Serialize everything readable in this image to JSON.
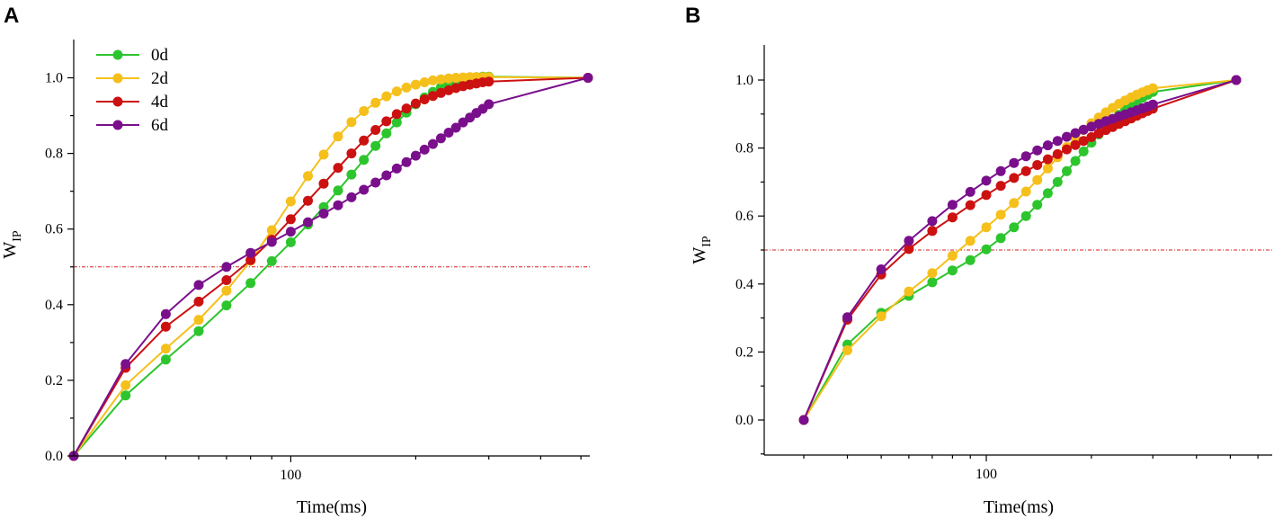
{
  "colors": {
    "0d": "#2dc52d",
    "2d": "#f5c01c",
    "4d": "#cc1111",
    "6d": "#7a0f8c",
    "ref": "#d62020"
  },
  "chart_data": [
    {
      "panel": "A",
      "type": "line",
      "xscale": "log",
      "xlabel": "Time(ms)",
      "ylabel": "W",
      "ylabel_sub": "IP",
      "ylim": [
        0,
        1.1
      ],
      "yticks": [
        0.0,
        0.2,
        0.4,
        0.6,
        0.8,
        1.0
      ],
      "ytick_labels": [
        "0.0",
        "0.2",
        "0.4",
        "0.6",
        "0.8",
        "1.0"
      ],
      "xticks": [
        100
      ],
      "xtick_labels": [
        "100"
      ],
      "reference_line": 0.5,
      "legend": [
        "0d",
        "2d",
        "4d",
        "6d"
      ],
      "legend_position": "top-left",
      "series": [
        {
          "name": "0d",
          "color_key": "0d",
          "x": [
            30,
            40,
            50,
            60,
            70,
            80,
            90,
            100,
            110,
            120,
            130,
            140,
            150,
            160,
            170,
            180,
            190,
            200,
            210,
            220,
            230,
            240,
            250,
            260,
            270,
            280,
            290,
            300,
            520
          ],
          "y": [
            0,
            0.16,
            0.255,
            0.33,
            0.398,
            0.457,
            0.515,
            0.565,
            0.612,
            0.658,
            0.702,
            0.744,
            0.783,
            0.82,
            0.853,
            0.882,
            0.908,
            0.93,
            0.948,
            0.963,
            0.975,
            0.984,
            0.991,
            0.997,
            1.0,
            1.002,
            1.003,
            1.003,
            1.0
          ]
        },
        {
          "name": "2d",
          "color_key": "2d",
          "x": [
            30,
            40,
            50,
            60,
            70,
            80,
            90,
            100,
            110,
            120,
            130,
            140,
            150,
            160,
            170,
            180,
            190,
            200,
            210,
            220,
            230,
            240,
            250,
            260,
            270,
            280,
            290,
            300,
            520
          ],
          "y": [
            0,
            0.187,
            0.284,
            0.36,
            0.437,
            0.516,
            0.597,
            0.673,
            0.74,
            0.797,
            0.845,
            0.883,
            0.912,
            0.934,
            0.951,
            0.964,
            0.974,
            0.982,
            0.988,
            0.993,
            0.996,
            0.998,
            1.0,
            1.001,
            1.002,
            1.002,
            1.002,
            1.002,
            1.0
          ]
        },
        {
          "name": "4d",
          "color_key": "4d",
          "x": [
            30,
            40,
            50,
            60,
            70,
            80,
            90,
            100,
            110,
            120,
            130,
            140,
            150,
            160,
            170,
            180,
            190,
            200,
            210,
            220,
            230,
            240,
            250,
            260,
            270,
            280,
            290,
            300,
            520
          ],
          "y": [
            0,
            0.233,
            0.342,
            0.408,
            0.465,
            0.518,
            0.572,
            0.626,
            0.675,
            0.72,
            0.762,
            0.8,
            0.834,
            0.862,
            0.885,
            0.904,
            0.919,
            0.932,
            0.943,
            0.952,
            0.96,
            0.967,
            0.973,
            0.978,
            0.982,
            0.985,
            0.988,
            0.99,
            1.0
          ]
        },
        {
          "name": "6d",
          "color_key": "6d",
          "x": [
            30,
            40,
            50,
            60,
            70,
            80,
            90,
            100,
            110,
            120,
            130,
            140,
            150,
            160,
            170,
            180,
            190,
            200,
            210,
            220,
            230,
            240,
            250,
            260,
            270,
            280,
            290,
            300,
            520
          ],
          "y": [
            0,
            0.243,
            0.375,
            0.452,
            0.5,
            0.537,
            0.566,
            0.593,
            0.618,
            0.641,
            0.663,
            0.684,
            0.704,
            0.723,
            0.742,
            0.76,
            0.777,
            0.794,
            0.81,
            0.825,
            0.84,
            0.855,
            0.868,
            0.882,
            0.895,
            0.907,
            0.918,
            0.93,
            1.0
          ]
        }
      ]
    },
    {
      "panel": "B",
      "type": "line",
      "xscale": "log",
      "xlabel": "Time(ms)",
      "ylabel": "W",
      "ylabel_sub": "IP",
      "ylim": [
        -0.1,
        1.1
      ],
      "yticks": [
        0.0,
        0.2,
        0.4,
        0.6,
        0.8,
        1.0
      ],
      "ytick_labels": [
        "0.0",
        "0.2",
        "0.4",
        "0.6",
        "0.8",
        "1.0"
      ],
      "xticks": [
        100
      ],
      "xtick_labels": [
        "100"
      ],
      "reference_line": 0.5,
      "series": [
        {
          "name": "0d",
          "color_key": "0d",
          "x": [
            30,
            40,
            50,
            60,
            70,
            80,
            90,
            100,
            110,
            120,
            130,
            140,
            150,
            160,
            170,
            180,
            190,
            200,
            210,
            220,
            230,
            240,
            250,
            260,
            270,
            280,
            290,
            300,
            520
          ],
          "y": [
            0,
            0.222,
            0.315,
            0.365,
            0.405,
            0.44,
            0.47,
            0.502,
            0.535,
            0.567,
            0.6,
            0.633,
            0.667,
            0.7,
            0.732,
            0.762,
            0.79,
            0.816,
            0.84,
            0.862,
            0.881,
            0.898,
            0.913,
            0.926,
            0.938,
            0.948,
            0.957,
            0.965,
            1.0
          ]
        },
        {
          "name": "2d",
          "color_key": "2d",
          "x": [
            30,
            40,
            50,
            60,
            70,
            80,
            90,
            100,
            110,
            120,
            130,
            140,
            150,
            160,
            170,
            180,
            190,
            200,
            210,
            220,
            230,
            240,
            250,
            260,
            270,
            280,
            290,
            300,
            520
          ],
          "y": [
            0,
            0.205,
            0.305,
            0.378,
            0.432,
            0.483,
            0.527,
            0.567,
            0.604,
            0.638,
            0.672,
            0.706,
            0.74,
            0.773,
            0.803,
            0.83,
            0.853,
            0.873,
            0.89,
            0.905,
            0.918,
            0.93,
            0.94,
            0.949,
            0.957,
            0.964,
            0.97,
            0.976,
            1.0
          ]
        },
        {
          "name": "4d",
          "color_key": "4d",
          "x": [
            30,
            40,
            50,
            60,
            70,
            80,
            90,
            100,
            110,
            120,
            130,
            140,
            150,
            160,
            170,
            180,
            190,
            200,
            210,
            220,
            230,
            240,
            250,
            260,
            270,
            280,
            290,
            300,
            520
          ],
          "y": [
            0,
            0.295,
            0.428,
            0.503,
            0.556,
            0.596,
            0.632,
            0.662,
            0.689,
            0.712,
            0.732,
            0.75,
            0.767,
            0.782,
            0.796,
            0.809,
            0.821,
            0.832,
            0.843,
            0.853,
            0.862,
            0.871,
            0.879,
            0.887,
            0.895,
            0.902,
            0.909,
            0.916,
            1.0
          ]
        },
        {
          "name": "6d",
          "color_key": "6d",
          "x": [
            30,
            40,
            50,
            60,
            70,
            80,
            90,
            100,
            110,
            120,
            130,
            140,
            150,
            160,
            170,
            180,
            190,
            200,
            210,
            220,
            230,
            240,
            250,
            260,
            270,
            280,
            290,
            300,
            520
          ],
          "y": [
            0,
            0.302,
            0.443,
            0.527,
            0.585,
            0.633,
            0.671,
            0.704,
            0.732,
            0.756,
            0.776,
            0.793,
            0.808,
            0.821,
            0.833,
            0.844,
            0.854,
            0.863,
            0.871,
            0.879,
            0.886,
            0.893,
            0.899,
            0.905,
            0.911,
            0.917,
            0.922,
            0.928,
            1.0
          ]
        }
      ]
    }
  ]
}
